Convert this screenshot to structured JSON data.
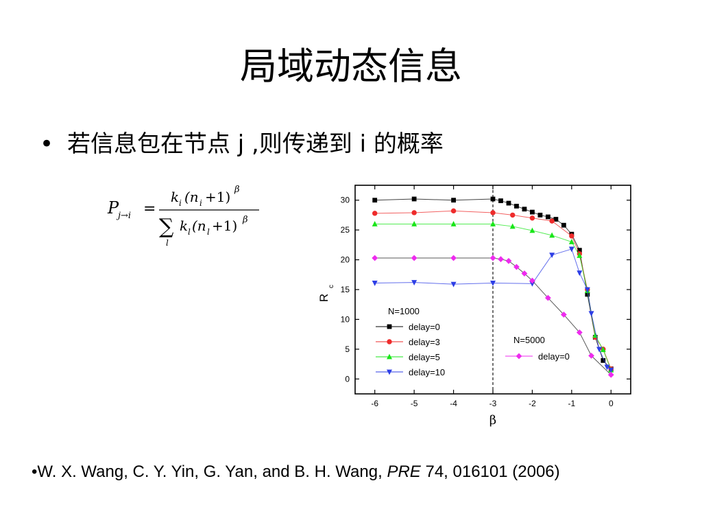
{
  "slide": {
    "title": "局域动态信息",
    "bullet_symbol": "•",
    "bullet_text": "若信息包在节点 j ,则传递到 i 的概率"
  },
  "formula": {
    "lhs": "P",
    "lhs_sub": "j→i",
    "equals": "=",
    "numerator": "k",
    "numerator_sub": "i",
    "numerator_rest": "(n",
    "numerator_rest_sub": "i",
    "numerator_tail": "+1)",
    "exponent": "β",
    "sum_symbol": "∑",
    "sum_index": "l",
    "denominator": "k",
    "denominator_sub": "l",
    "denominator_rest": "(n",
    "denominator_rest_sub": "l",
    "denominator_tail": "+1)",
    "denominator_exponent": "β"
  },
  "reference": {
    "prefix": "•W. X. Wang, C. Y. Yin, G. Yan, and B. H. Wang, ",
    "journal": "PRE",
    "suffix": " 74, 016101 (2006)"
  },
  "chart_data": {
    "type": "line",
    "xlabel": "β",
    "ylabel": "R",
    "ylabel_sub": "c",
    "xlim": [
      -6.5,
      0.5
    ],
    "ylim": [
      -2.5,
      32.5
    ],
    "xticks": [
      -6,
      -5,
      -4,
      -3,
      -2,
      -1,
      0
    ],
    "yticks": [
      0,
      5,
      10,
      15,
      20,
      25,
      30
    ],
    "vline_x": -3,
    "legend_groups": [
      {
        "title": "N=1000",
        "entries": [
          "delay=0",
          "delay=3",
          "delay=5",
          "delay=10"
        ]
      },
      {
        "title": "N=5000",
        "entries": [
          "delay=0"
        ]
      }
    ],
    "series": [
      {
        "name": "delay=0",
        "group": "N=1000",
        "color": "#000000",
        "marker": "square",
        "x": [
          -6,
          -5,
          -4,
          -3,
          -2.8,
          -2.6,
          -2.4,
          -2.2,
          -2.0,
          -1.8,
          -1.6,
          -1.4,
          -1.2,
          -1.0,
          -0.8,
          -0.6,
          -0.4,
          -0.2,
          0
        ],
        "y": [
          30.0,
          30.2,
          30.0,
          30.2,
          29.9,
          29.5,
          29.0,
          28.5,
          28.0,
          27.5,
          27.2,
          26.8,
          25.8,
          24.3,
          21.6,
          14.2,
          7.0,
          3.1,
          1.7
        ]
      },
      {
        "name": "delay=3",
        "group": "N=1000",
        "color": "#ee2b2b",
        "marker": "circle",
        "x": [
          -6,
          -5,
          -4,
          -3,
          -2.5,
          -2.0,
          -1.5,
          -1.0,
          -0.8,
          -0.6,
          -0.4,
          -0.2,
          0
        ],
        "y": [
          27.8,
          27.9,
          28.2,
          27.9,
          27.5,
          27.0,
          26.5,
          24.0,
          21.0,
          15.0,
          7.0,
          5.0,
          1.7
        ]
      },
      {
        "name": "delay=5",
        "group": "N=1000",
        "color": "#19e619",
        "marker": "triangle-up",
        "x": [
          -6,
          -5,
          -4,
          -3,
          -2.5,
          -2.0,
          -1.5,
          -1.0,
          -0.8,
          -0.6,
          -0.4,
          -0.2,
          0
        ],
        "y": [
          26.0,
          26.0,
          26.0,
          26.0,
          25.6,
          24.9,
          24.1,
          23.0,
          20.7,
          14.8,
          7.3,
          4.9,
          1.5
        ]
      },
      {
        "name": "delay=10",
        "group": "N=1000",
        "color": "#2d3ee6",
        "marker": "triangle-down",
        "x": [
          -6,
          -5,
          -4,
          -3,
          -2.0,
          -1.5,
          -1.0,
          -0.8,
          -0.6,
          -0.5,
          -0.3,
          -0.1,
          0
        ],
        "y": [
          16.1,
          16.2,
          15.9,
          16.1,
          16.0,
          20.8,
          21.8,
          17.8,
          15.0,
          11.0,
          5.0,
          2.0,
          1.5
        ]
      },
      {
        "name": "delay=0",
        "group": "N=5000",
        "color": "#ee2bee",
        "marker": "diamond",
        "x": [
          -6,
          -5,
          -4,
          -3,
          -2.8,
          -2.6,
          -2.4,
          -2.2,
          -2.0,
          -1.6,
          -1.2,
          -0.8,
          -0.5,
          0
        ],
        "y": [
          20.3,
          20.3,
          20.3,
          20.3,
          20.1,
          19.8,
          18.8,
          17.7,
          16.5,
          13.6,
          10.8,
          7.8,
          3.9,
          0.7
        ]
      }
    ]
  }
}
